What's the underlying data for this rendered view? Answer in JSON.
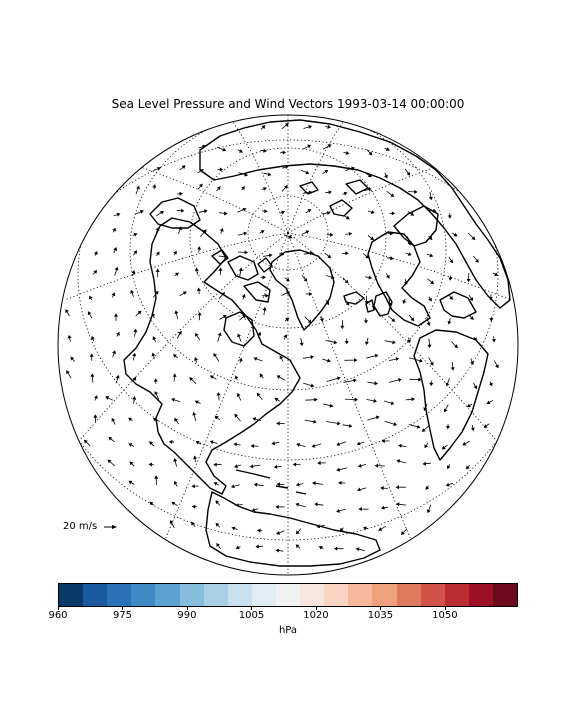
{
  "title": "Sea Level Pressure and Wind Vectors 1993-03-14 00:00:00",
  "reference_vector_label": "20 m/s",
  "colorbar": {
    "ticks": [
      "960",
      "975",
      "990",
      "1005",
      "1020",
      "1035",
      "1050"
    ],
    "units": "hPa",
    "colors": [
      "#0b3b6b",
      "#1c5aa0",
      "#2a72b8",
      "#3d8ac4",
      "#5aa3d0",
      "#86bcdc",
      "#aad0e6",
      "#c8e0ee",
      "#e1ecf3",
      "#f2f2f2",
      "#f7e6e0",
      "#fad4c3",
      "#f6b79a",
      "#efa07d",
      "#e07a5f",
      "#d1534a",
      "#bb2c33",
      "#9c1027",
      "#6e0a1e"
    ]
  },
  "map": {
    "projection": "orthographic, centered over North America / North Atlantic",
    "coastline_color": "#000000",
    "graticule_style": "dotted",
    "features": [
      "coastlines",
      "graticule",
      "wind-vectors"
    ]
  }
}
